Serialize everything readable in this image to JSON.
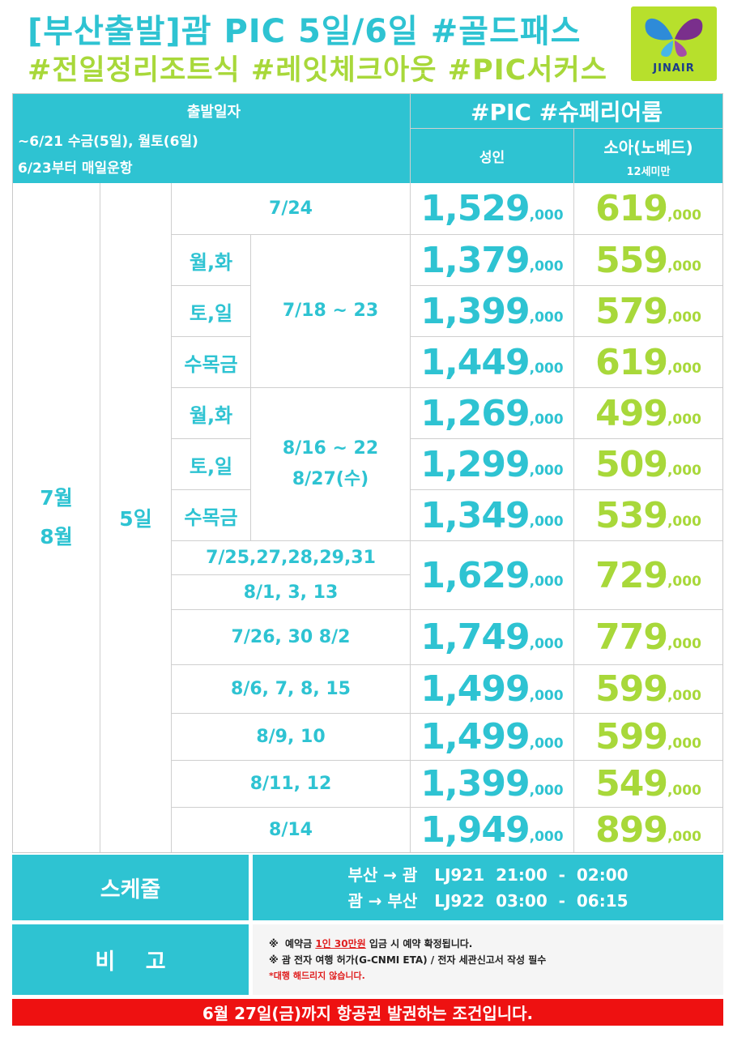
{
  "header": {
    "title_line1": "[부산출발]괌 PIC 5일/6일 #골드패스",
    "title_line2": "#전일정리조트식 #레잇체크아웃 #PIC서커스",
    "logo_text": "JINAIR"
  },
  "table_header": {
    "departure_label": "출발일자",
    "departure_note1": "~6/21 수금(5일), 월토(6일)",
    "departure_note2": "6/23부터 매일운항",
    "room_label": "#PIC #슈페리어룸",
    "adult_label": "성인",
    "child_label": "소아(노베드)",
    "child_note": "12세미만"
  },
  "month_label_line1": "7월",
  "month_label_line2": "8월",
  "duration_label": "5일",
  "rows": [
    {
      "day": "",
      "date": "7/24",
      "adult": "1,529",
      "child": "619"
    },
    {
      "day": "월,화",
      "date": "7/18 ~ 23",
      "adult": "1,379",
      "child": "559"
    },
    {
      "day": "토,일",
      "date": "",
      "adult": "1,399",
      "child": "579"
    },
    {
      "day": "수목금",
      "date": "",
      "adult": "1,449",
      "child": "619"
    },
    {
      "day": "월,화",
      "date": "8/16 ~ 22",
      "date2": "8/27(수)",
      "adult": "1,269",
      "child": "499"
    },
    {
      "day": "토,일",
      "date": "",
      "adult": "1,299",
      "child": "509"
    },
    {
      "day": "수목금",
      "date": "",
      "adult": "1,349",
      "child": "539"
    },
    {
      "day": "",
      "date": "7/25,27,28,29,31",
      "date2": "8/1, 3, 13",
      "adult": "1,629",
      "child": "729"
    },
    {
      "day": "",
      "date": "7/26, 30 8/2",
      "adult": "1,749",
      "child": "779"
    },
    {
      "day": "",
      "date": "8/6, 7, 8, 15",
      "adult": "1,499",
      "child": "599"
    },
    {
      "day": "",
      "date": "8/9, 10",
      "adult": "1,499",
      "child": "599"
    },
    {
      "day": "",
      "date": "8/11, 12",
      "adult": "1,399",
      "child": "549"
    },
    {
      "day": "",
      "date": "8/14",
      "adult": "1,949",
      "child": "899"
    }
  ],
  "price_suffix": ",000",
  "schedule": {
    "label": "스케줄",
    "line1": "부산 → 괌   LJ921  21:00  -  02:00",
    "line2": "괌 → 부산   LJ922  03:00  -  06:15"
  },
  "remarks": {
    "label": "비    고",
    "note1_prefix": "※  예약금 ",
    "note1_highlight": "1인 30만원",
    "note1_suffix": " 입금 시 예약 확정됩니다.",
    "note2": "※  괌 전자 여행 허가(G-CNMI ETA) / 전자 세관신고서 작성 필수",
    "note3": "*대행 해드리지 않습니다."
  },
  "footer_banner": "6월 27일(금)까지 항공권 발권하는 조건입니다.",
  "colors": {
    "teal": "#2ec3d2",
    "lime": "#a8d83a",
    "red": "#ee1111"
  }
}
